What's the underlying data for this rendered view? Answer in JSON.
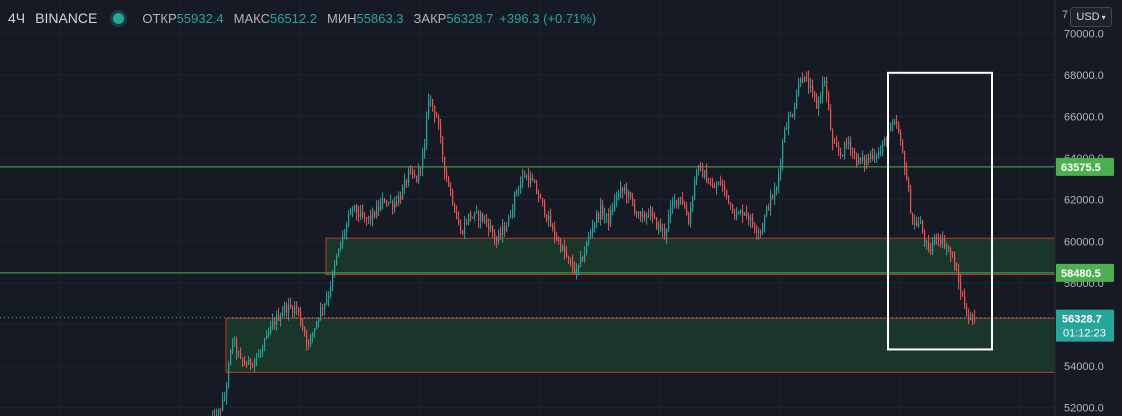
{
  "header": {
    "timeframe": "4Ч",
    "exchange": "BINANCE",
    "open_label": "ОТКР",
    "open_value": "55932.4",
    "high_label": "МАКС",
    "high_value": "56512.2",
    "low_label": "МИН",
    "low_value": "55863.3",
    "close_label": "ЗАКР",
    "close_value": "56328.7",
    "change": "+396.3 (+0.71%)"
  },
  "currency_selector": {
    "label": "USD",
    "partial_label": "7"
  },
  "colors": {
    "background": "#161a25",
    "up": "#26a69a",
    "down": "#ef5350",
    "support_line": "#4caf50",
    "zone_fill": "#1b3a2c",
    "zone_border": "#c0392b",
    "highlight_box": "#ffffff"
  },
  "chart_data": {
    "type": "candlestick",
    "ylim": [
      51600,
      71600
    ],
    "y_ticks": [
      "52000.0",
      "54000.0",
      "56000.0",
      "58000.0",
      "60000.0",
      "62000.0",
      "64000.0",
      "66000.0",
      "68000.0",
      "70000.0"
    ],
    "horizontal_lines": [
      {
        "value": 63575.5,
        "label": "63575.5"
      },
      {
        "value": 58480.5,
        "label": "58480.5"
      }
    ],
    "current_price": {
      "value": 56328.7,
      "label": "56328.7",
      "countdown": "01:12:23"
    },
    "zones": [
      {
        "top": 60150,
        "bottom": 58400,
        "start_candle": 58
      },
      {
        "top": 56300,
        "bottom": 53700,
        "start_candle": 8
      }
    ],
    "highlight_box": {
      "start_candle": 312,
      "end_candle": 352,
      "top": 68100,
      "bottom": 54800
    },
    "path": [
      [
        0,
        51200
      ],
      [
        4,
        51500
      ],
      [
        8,
        52500
      ],
      [
        12,
        55300
      ],
      [
        16,
        54200
      ],
      [
        20,
        54100
      ],
      [
        26,
        54600
      ],
      [
        32,
        56000
      ],
      [
        38,
        56800
      ],
      [
        44,
        56800
      ],
      [
        50,
        55000
      ],
      [
        55,
        56500
      ],
      [
        60,
        57500
      ],
      [
        64,
        59200
      ],
      [
        68,
        60500
      ],
      [
        72,
        61600
      ],
      [
        78,
        61000
      ],
      [
        82,
        61200
      ],
      [
        88,
        62000
      ],
      [
        92,
        61800
      ],
      [
        96,
        62200
      ],
      [
        100,
        63200
      ],
      [
        104,
        63000
      ],
      [
        108,
        64500
      ],
      [
        110,
        67000
      ],
      [
        114,
        66000
      ],
      [
        118,
        63500
      ],
      [
        122,
        62000
      ],
      [
        126,
        60400
      ],
      [
        130,
        61200
      ],
      [
        136,
        61200
      ],
      [
        140,
        60800
      ],
      [
        144,
        60000
      ],
      [
        150,
        61000
      ],
      [
        154,
        62500
      ],
      [
        158,
        63200
      ],
      [
        162,
        62800
      ],
      [
        168,
        61500
      ],
      [
        172,
        60500
      ],
      [
        176,
        59800
      ],
      [
        180,
        59000
      ],
      [
        184,
        58500
      ],
      [
        188,
        59500
      ],
      [
        192,
        60800
      ],
      [
        196,
        61500
      ],
      [
        200,
        61000
      ],
      [
        204,
        62200
      ],
      [
        208,
        62500
      ],
      [
        212,
        61800
      ],
      [
        216,
        61000
      ],
      [
        220,
        61400
      ],
      [
        224,
        60800
      ],
      [
        228,
        60400
      ],
      [
        232,
        61800
      ],
      [
        236,
        62200
      ],
      [
        240,
        61000
      ],
      [
        244,
        63500
      ],
      [
        248,
        63200
      ],
      [
        252,
        62500
      ],
      [
        256,
        62800
      ],
      [
        260,
        62000
      ],
      [
        264,
        61200
      ],
      [
        268,
        61500
      ],
      [
        272,
        60800
      ],
      [
        276,
        60500
      ],
      [
        280,
        61800
      ],
      [
        284,
        62500
      ],
      [
        288,
        65500
      ],
      [
        292,
        66200
      ],
      [
        296,
        68000
      ],
      [
        300,
        67500
      ],
      [
        304,
        66500
      ],
      [
        308,
        67800
      ],
      [
        312,
        64600
      ],
      [
        316,
        64200
      ],
      [
        320,
        64800
      ],
      [
        324,
        63900
      ],
      [
        328,
        63800
      ],
      [
        332,
        64200
      ],
      [
        336,
        64300
      ],
      [
        340,
        65300
      ],
      [
        344,
        65600
      ],
      [
        348,
        63700
      ],
      [
        352,
        60900
      ],
      [
        356,
        60800
      ],
      [
        360,
        59400
      ],
      [
        364,
        60300
      ],
      [
        368,
        59900
      ],
      [
        372,
        59200
      ],
      [
        376,
        57600
      ],
      [
        380,
        56300
      ],
      [
        382,
        56330
      ]
    ]
  }
}
